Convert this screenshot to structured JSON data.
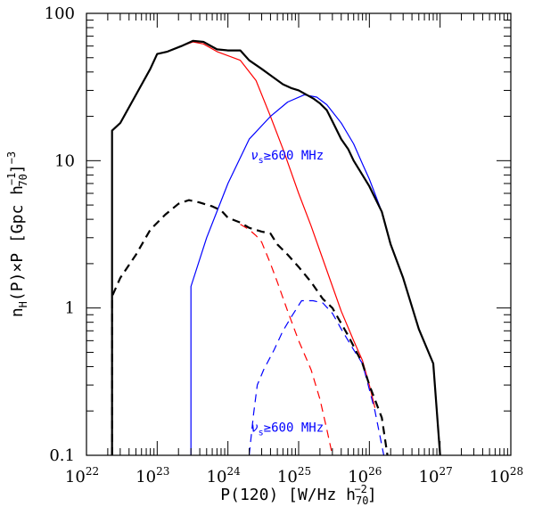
{
  "chart_data": {
    "type": "line",
    "x_scale": "log",
    "y_scale": "log",
    "xlim": [
      1e+22,
      1e+28
    ],
    "ylim": [
      0.1,
      100
    ],
    "x_ticks": [
      {
        "value": 1e+22,
        "base": "10",
        "exp": "22"
      },
      {
        "value": 1e+23,
        "base": "10",
        "exp": "23"
      },
      {
        "value": 1e+24,
        "base": "10",
        "exp": "24"
      },
      {
        "value": 1e+25,
        "base": "10",
        "exp": "25"
      },
      {
        "value": 1e+26,
        "base": "10",
        "exp": "26"
      },
      {
        "value": 1e+27,
        "base": "10",
        "exp": "27"
      },
      {
        "value": 1e+28,
        "base": "10",
        "exp": "28"
      }
    ],
    "y_ticks": [
      {
        "value": 0.1,
        "label": "0.1"
      },
      {
        "value": 1,
        "label": "1"
      },
      {
        "value": 10,
        "label": "10"
      },
      {
        "value": 100,
        "label": "100"
      }
    ],
    "xlabel": {
      "pre": "P(120) [W/Hz h",
      "sub": "70",
      "sup": "−2",
      "post": "]"
    },
    "ylabel": {
      "p1": "n",
      "s1": "H",
      "p2": "(P)×P [Gpc h",
      "sup": "−1",
      "sub": "70",
      "p3": "]",
      "sup2": "−3"
    },
    "annotations": [
      {
        "nu": "ν",
        "sub": "s",
        "rest": "≥600 MHz",
        "color": "#0000ff",
        "at": [
          2.1e+24,
          10.2
        ]
      },
      {
        "nu": "ν",
        "sub": "s",
        "rest": "≥600 MHz",
        "color": "#0000ff",
        "at": [
          2.1e+24,
          0.145
        ]
      }
    ],
    "grid": false,
    "series": [
      {
        "color": "#ff0000",
        "dash": false,
        "width": 1.2,
        "x": [
          1e+23,
          1.4e+23,
          2.2e+23,
          3.2e+23,
          4.5e+23,
          7e+23,
          1.5e+24,
          2.5e+24,
          4e+24,
          6e+24,
          1e+25,
          1.5e+25,
          2.5e+25,
          4e+25,
          6e+25,
          8e+25,
          1e+26,
          1.2e+26
        ],
        "y": [
          53,
          55,
          60,
          64,
          62,
          55,
          48,
          35,
          20,
          12,
          6,
          3.6,
          1.8,
          0.95,
          0.6,
          0.44,
          0.3,
          0.21
        ]
      },
      {
        "color": "#0000ff",
        "dash": false,
        "width": 1.2,
        "x": [
          3e+23,
          3e+23,
          5e+23,
          1e+24,
          2e+24,
          4e+24,
          7e+24,
          1.2e+25,
          1.8e+25,
          2.5e+25,
          4e+25,
          6e+25,
          8e+25,
          1e+26,
          1.5e+26,
          2e+26
        ],
        "y": [
          0.1,
          1.4,
          3,
          7,
          14,
          20,
          25,
          28,
          27,
          24,
          18,
          13,
          9.5,
          7.5,
          4.5,
          2.7
        ]
      },
      {
        "color": "#ff0000",
        "dash": true,
        "width": 1.2,
        "x": [
          1.5e+24,
          2e+24,
          2.5e+24,
          3e+24,
          4e+24,
          5e+24,
          7e+24,
          1e+25,
          1.5e+25,
          2e+25,
          2.5e+25,
          3e+25
        ],
        "y": [
          3.7,
          3.4,
          3.1,
          2.8,
          2.0,
          1.5,
          0.95,
          0.6,
          0.38,
          0.24,
          0.15,
          0.1
        ]
      },
      {
        "color": "#0000ff",
        "dash": true,
        "width": 1.2,
        "x": [
          2e+24,
          2.3e+24,
          2.6e+24,
          3.2e+24,
          4.5e+24,
          6e+24,
          8e+24,
          1.1e+25,
          1.6e+25,
          2.2e+25,
          3e+25,
          4e+25,
          6e+25,
          8e+25,
          1e+26,
          1.2e+26,
          1.6e+26
        ],
        "y": [
          0.1,
          0.19,
          0.3,
          0.38,
          0.52,
          0.7,
          0.88,
          1.12,
          1.12,
          1.08,
          0.92,
          0.72,
          0.52,
          0.42,
          0.28,
          0.2,
          0.1
        ]
      },
      {
        "color": "#000000",
        "dash": false,
        "width": 2.2,
        "x": [
          2.3e+22,
          2.3e+22,
          3e+22,
          5e+22,
          8e+22,
          1e+23,
          1.4e+23,
          2.2e+23,
          3.2e+23,
          4.5e+23,
          7e+23,
          1e+24,
          1.5e+24,
          2e+24,
          3e+24,
          4e+24,
          6e+24,
          8e+24,
          1e+25,
          1.3e+25,
          1.6e+25,
          2e+25,
          2.5e+25,
          3e+25,
          4e+25,
          5e+25,
          6e+25,
          8e+25,
          1e+26,
          1.5e+26,
          2e+26,
          3e+26,
          5e+26,
          8e+26,
          1e+27
        ],
        "y": [
          0.1,
          16,
          18,
          28,
          42,
          53,
          55,
          60,
          65,
          64,
          57,
          56,
          56,
          48,
          42,
          38,
          33,
          31,
          30,
          28,
          26.5,
          24.5,
          22,
          18.5,
          14,
          12,
          10,
          8,
          6.7,
          4.5,
          2.7,
          1.6,
          0.72,
          0.42,
          0.1
        ]
      },
      {
        "color": "#000000",
        "dash": true,
        "width": 2.2,
        "x": [
          2.3e+22,
          2.3e+22,
          3e+22,
          5e+22,
          8e+22,
          1.3e+23,
          2e+23,
          2.8e+23,
          4e+23,
          6e+23,
          8e+23,
          1e+24,
          1.5e+24,
          2e+24,
          3e+24,
          4e+24,
          5e+24,
          7e+24,
          1e+25,
          1.5e+25,
          2.2e+25,
          3e+25,
          5e+25,
          8e+25,
          1e+26,
          1.5e+26,
          1.8e+26
        ],
        "y": [
          0.1,
          1.2,
          1.6,
          2.3,
          3.4,
          4.3,
          5.1,
          5.4,
          5.2,
          4.9,
          4.6,
          4.1,
          3.8,
          3.5,
          3.3,
          3.2,
          2.7,
          2.3,
          1.9,
          1.5,
          1.15,
          1.0,
          0.65,
          0.42,
          0.3,
          0.18,
          0.1
        ]
      }
    ]
  }
}
